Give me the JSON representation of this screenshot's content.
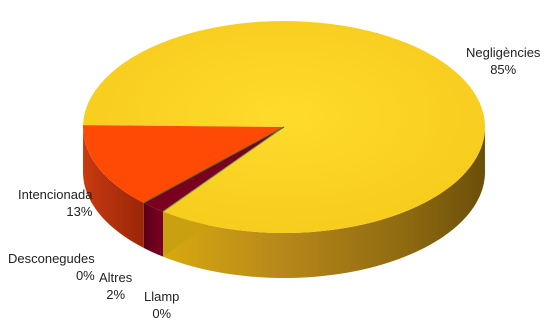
{
  "chart_data": {
    "type": "pie",
    "style": "3d",
    "slices": [
      {
        "label": "Negligències",
        "value": 85,
        "display": "85%",
        "color": "#f8cf1f"
      },
      {
        "label": "Intencionada",
        "value": 13,
        "display": "13%",
        "color": "#ff4a06"
      },
      {
        "label": "Desconegudes",
        "value": 0,
        "display": "0%",
        "color": "#4a6b2a"
      },
      {
        "label": "Altres",
        "value": 2,
        "display": "2%",
        "color": "#7a0020"
      },
      {
        "label": "Llamp",
        "value": 0,
        "display": "0%",
        "color": "#7f9f4f"
      }
    ],
    "legend": "none"
  }
}
